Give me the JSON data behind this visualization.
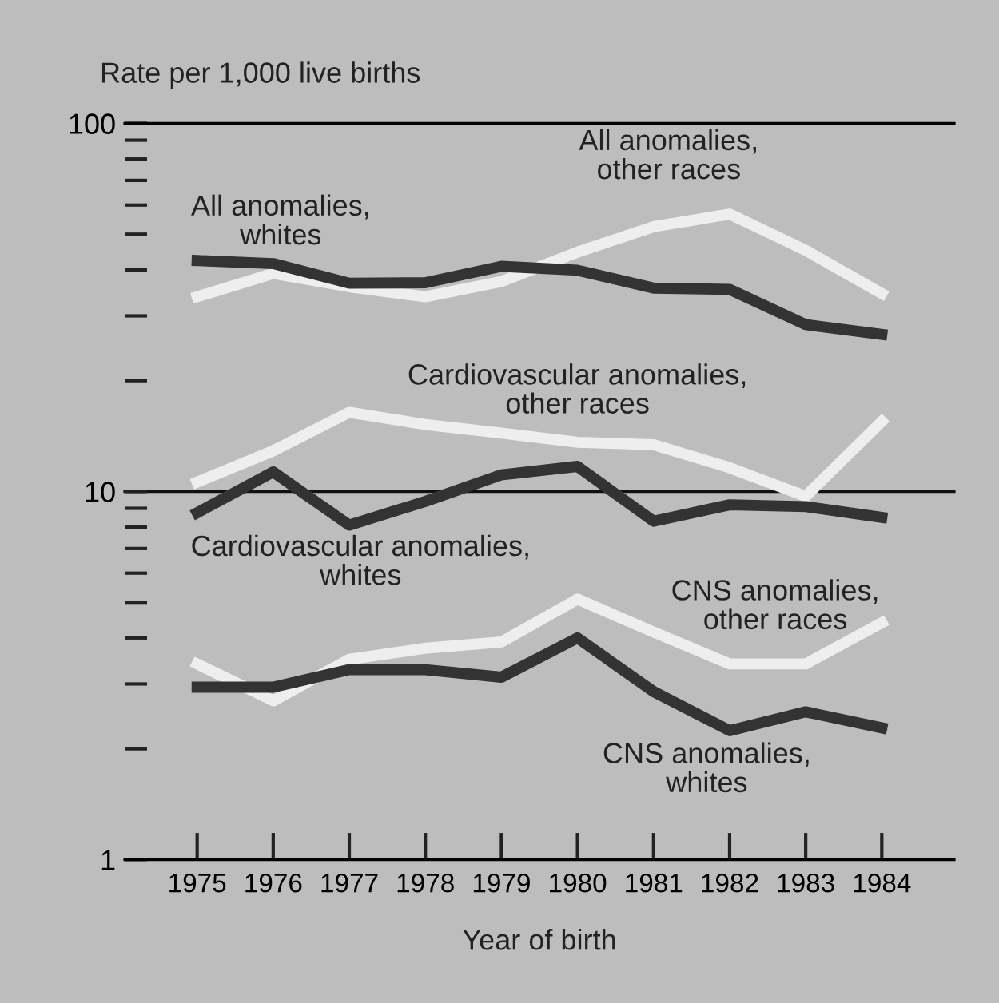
{
  "chart_data": {
    "type": "line",
    "ylabel": "Rate per 1,000 live births",
    "xlabel": "Year of birth",
    "categories": [
      "1975",
      "1976",
      "1977",
      "1978",
      "1979",
      "1980",
      "1981",
      "1982",
      "1983",
      "1984"
    ],
    "log": true,
    "ylim": [
      1,
      100
    ],
    "yticks": [
      1,
      {
        "value": 2,
        "label": null
      },
      {
        "value": 3,
        "label": null
      },
      {
        "value": 4,
        "label": null
      },
      {
        "value": 5,
        "label": null
      },
      {
        "value": 6,
        "label": null
      },
      {
        "value": 7,
        "label": null
      },
      {
        "value": 8,
        "label": null
      },
      {
        "value": 9,
        "label": null
      },
      10,
      {
        "value": 20,
        "label": null
      },
      {
        "value": 30,
        "label": null
      },
      {
        "value": 40,
        "label": null
      },
      {
        "value": 50,
        "label": null
      },
      {
        "value": 60,
        "label": null
      },
      {
        "value": 70,
        "label": null
      },
      {
        "value": 80,
        "label": null
      },
      {
        "value": 90,
        "label": null
      },
      100
    ],
    "ref_lines": [
      {
        "axis": "y",
        "value": 10,
        "color": "#111111"
      }
    ],
    "series": [
      {
        "name": "All anomalies, other races",
        "color": "#eeeeee",
        "values": [
          33.8,
          39.1,
          36,
          33.8,
          37.2,
          44.7,
          52.4,
          56.7,
          45.2,
          34.5
        ]
      },
      {
        "name": "All anomalies, whites",
        "color": "#333333",
        "values": [
          42.4,
          41.6,
          36.8,
          36.9,
          40.9,
          39.9,
          35.7,
          35.4,
          28.4,
          26.7
        ]
      },
      {
        "name": "Cardiovascular anomalies, other races",
        "color": "#eeeeee",
        "values": [
          10.6,
          12.9,
          16.4,
          15.2,
          14.4,
          13.6,
          13.4,
          11.6,
          9.7,
          15.5
        ]
      },
      {
        "name": "Cardiovascular anomalies, whites",
        "color": "#333333",
        "values": [
          8.75,
          11.3,
          8.1,
          9.4,
          11.1,
          11.7,
          8.3,
          9.2,
          9.1,
          8.5
        ]
      },
      {
        "name": "CNS anomalies, other races",
        "color": "#eeeeee",
        "values": [
          3.4,
          2.7,
          3.5,
          3.75,
          3.9,
          5.1,
          4.15,
          3.4,
          3.4,
          4.4
        ]
      },
      {
        "name": "CNS anomalies, whites",
        "color": "#333333",
        "values": [
          2.94,
          2.94,
          3.28,
          3.28,
          3.13,
          4.0,
          2.86,
          2.24,
          2.52,
          2.28
        ]
      }
    ]
  }
}
